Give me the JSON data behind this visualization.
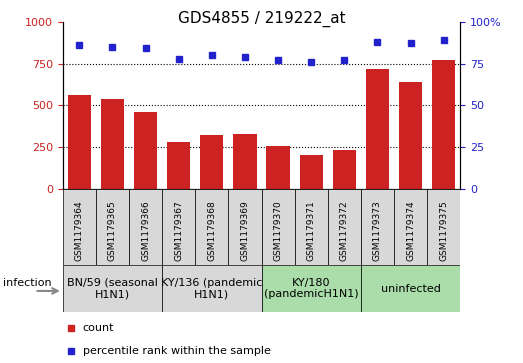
{
  "title": "GDS4855 / 219222_at",
  "samples": [
    "GSM1179364",
    "GSM1179365",
    "GSM1179366",
    "GSM1179367",
    "GSM1179368",
    "GSM1179369",
    "GSM1179370",
    "GSM1179371",
    "GSM1179372",
    "GSM1179373",
    "GSM1179374",
    "GSM1179375"
  ],
  "counts": [
    560,
    540,
    460,
    280,
    320,
    330,
    255,
    205,
    235,
    720,
    640,
    770
  ],
  "percentile_ranks": [
    86,
    85,
    84,
    78,
    80,
    79,
    77,
    76,
    77,
    88,
    87,
    89
  ],
  "ylim_left": [
    0,
    1000
  ],
  "ylim_right": [
    0,
    100
  ],
  "yticks_left": [
    0,
    250,
    500,
    750,
    1000
  ],
  "yticks_right": [
    0,
    25,
    50,
    75,
    100
  ],
  "bar_color": "#cc2222",
  "dot_color": "#2222cc",
  "grid_values": [
    250,
    500,
    750
  ],
  "groups": [
    {
      "label": "BN/59 (seasonal\nH1N1)",
      "start": 0,
      "end": 3,
      "color": "#d8d8d8"
    },
    {
      "label": "KY/136 (pandemic\nH1N1)",
      "start": 3,
      "end": 6,
      "color": "#d8d8d8"
    },
    {
      "label": "KY/180\n(pandemicH1N1)",
      "start": 6,
      "end": 9,
      "color": "#aaddaa"
    },
    {
      "label": "uninfected",
      "start": 9,
      "end": 12,
      "color": "#aaddaa"
    }
  ],
  "sample_box_color": "#d8d8d8",
  "infection_label": "infection",
  "legend_count_label": "count",
  "legend_percentile_label": "percentile rank within the sample",
  "background_color": "#ffffff",
  "title_fontsize": 11,
  "tick_fontsize": 8,
  "sample_fontsize": 6.5,
  "group_fontsize": 8
}
